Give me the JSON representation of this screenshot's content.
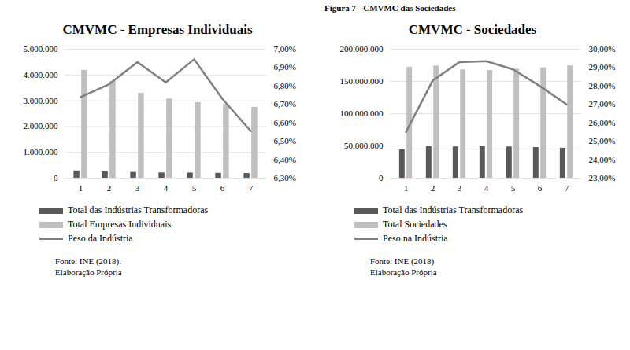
{
  "caption": "Figura 7 - CMVMC das Sociedades",
  "chart_data": [
    {
      "type": "bar",
      "title": "CMVMC - Empresas Individuais",
      "categories": [
        "1",
        "2",
        "3",
        "4",
        "5",
        "6",
        "7"
      ],
      "series": [
        {
          "name": "Total das Indústrias Transformadoras",
          "color": "#595959",
          "values": [
            280000,
            250000,
            225000,
            205000,
            200000,
            190000,
            180000
          ]
        },
        {
          "name": "Total Empresas Individuais",
          "color": "#bfbfbf",
          "values": [
            4180000,
            3750000,
            3290000,
            3070000,
            2930000,
            2860000,
            2750000
          ]
        },
        {
          "name": "Peso da Indústria",
          "color": "#808080",
          "type": "line",
          "axis": "y2",
          "values": [
            6.74,
            6.81,
            6.93,
            6.82,
            6.945,
            6.73,
            6.555
          ]
        }
      ],
      "ylim": [
        0,
        5000000
      ],
      "yticks": [
        0,
        {
          "value": 1000000,
          "label": "1.000.000"
        },
        {
          "value": 2000000,
          "label": "2.000.000"
        },
        {
          "value": 3000000,
          "label": "3.000.000"
        },
        {
          "value": 4000000,
          "label": "4.000.000"
        },
        {
          "value": 5000000,
          "label": "5.000.000"
        }
      ],
      "y2lim": [
        6.3,
        7.0
      ],
      "y2ticks": [
        {
          "value": 6.3,
          "label": "6,30%"
        },
        {
          "value": 6.4,
          "label": "6,40%"
        },
        {
          "value": 6.5,
          "label": "6,50%"
        },
        {
          "value": 6.6,
          "label": "6,60%"
        },
        {
          "value": 6.7,
          "label": "6,70%"
        },
        {
          "value": 6.8,
          "label": "6,80%"
        },
        {
          "value": 6.9,
          "label": "6,90%"
        },
        {
          "value": 7.0,
          "label": "7,00%"
        }
      ],
      "grid": true,
      "legend": "bottom",
      "notes": [
        "Fonte: INE (2018).",
        "Elaboração Própria"
      ]
    },
    {
      "type": "bar",
      "title": "CMVMC - Sociedades",
      "categories": [
        "1",
        "2",
        "3",
        "4",
        "5",
        "6",
        "7"
      ],
      "series": [
        {
          "name": "Total das Indústrias Transformadoras",
          "color": "#595959",
          "values": [
            44000000,
            49000000,
            48500000,
            49000000,
            48500000,
            47500000,
            46500000
          ]
        },
        {
          "name": "Total Sociedades",
          "color": "#bfbfbf",
          "values": [
            172000000,
            174000000,
            168000000,
            167000000,
            169000000,
            171000000,
            174000000
          ]
        },
        {
          "name": "Peso na Indústria",
          "color": "#808080",
          "type": "line",
          "axis": "y2",
          "values": [
            25.5,
            28.3,
            29.3,
            29.35,
            28.9,
            28.0,
            27.0
          ]
        }
      ],
      "ylim": [
        0,
        200000000
      ],
      "yticks": [
        0,
        {
          "value": 50000000,
          "label": "50.000.000"
        },
        {
          "value": 100000000,
          "label": "100.000.000"
        },
        {
          "value": 150000000,
          "label": "150.000.000"
        },
        {
          "value": 200000000,
          "label": "200.000.000"
        }
      ],
      "y2lim": [
        23,
        30
      ],
      "y2ticks": [
        {
          "value": 23,
          "label": "23,00%"
        },
        {
          "value": 24,
          "label": "24,00%"
        },
        {
          "value": 25,
          "label": "25,00%"
        },
        {
          "value": 26,
          "label": "26,00%"
        },
        {
          "value": 27,
          "label": "27,00%"
        },
        {
          "value": 28,
          "label": "28,00%"
        },
        {
          "value": 29,
          "label": "29,00%"
        },
        {
          "value": 30,
          "label": "30,00%"
        }
      ],
      "grid": true,
      "legend": "bottom",
      "notes": [
        "Fonte: INE (2018)",
        "Elaboração Própria"
      ]
    }
  ]
}
